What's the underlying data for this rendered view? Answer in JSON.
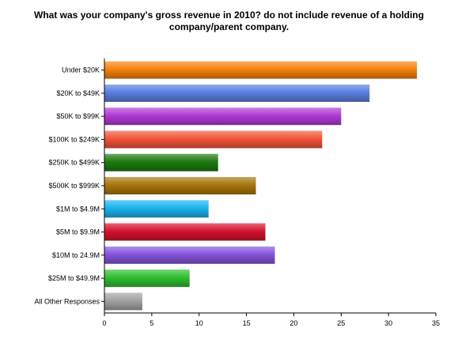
{
  "chart_data": {
    "type": "bar",
    "orientation": "horizontal",
    "title_lines": [
      "What was your company's gross revenue in 2010? do not include revenue of a holding",
      "company/parent company."
    ],
    "categories": [
      "Under $20K",
      "$20K to $49K",
      "$50K to $99K",
      "$100K to $249K",
      "$250K to $499K",
      "$500K to $999K",
      "$1M to $4.9M",
      "$5M to $9.9M",
      "$10M to 24.9M",
      "$25M to $49.9M",
      "All Other Responses"
    ],
    "values": [
      33,
      28,
      25,
      23,
      12,
      16,
      11,
      17,
      18,
      9,
      4
    ],
    "colors": [
      "#f5820e",
      "#5b7fe0",
      "#b03ad6",
      "#f2553a",
      "#1d7a10",
      "#a8760c",
      "#1ab4ef",
      "#d6122f",
      "#8655de",
      "#2fbf2f",
      "#a3a3a3"
    ],
    "xlim": [
      0,
      35
    ],
    "xticks": [
      0,
      5,
      10,
      15,
      20,
      25,
      30,
      35
    ],
    "grid": false,
    "legend": "none"
  }
}
